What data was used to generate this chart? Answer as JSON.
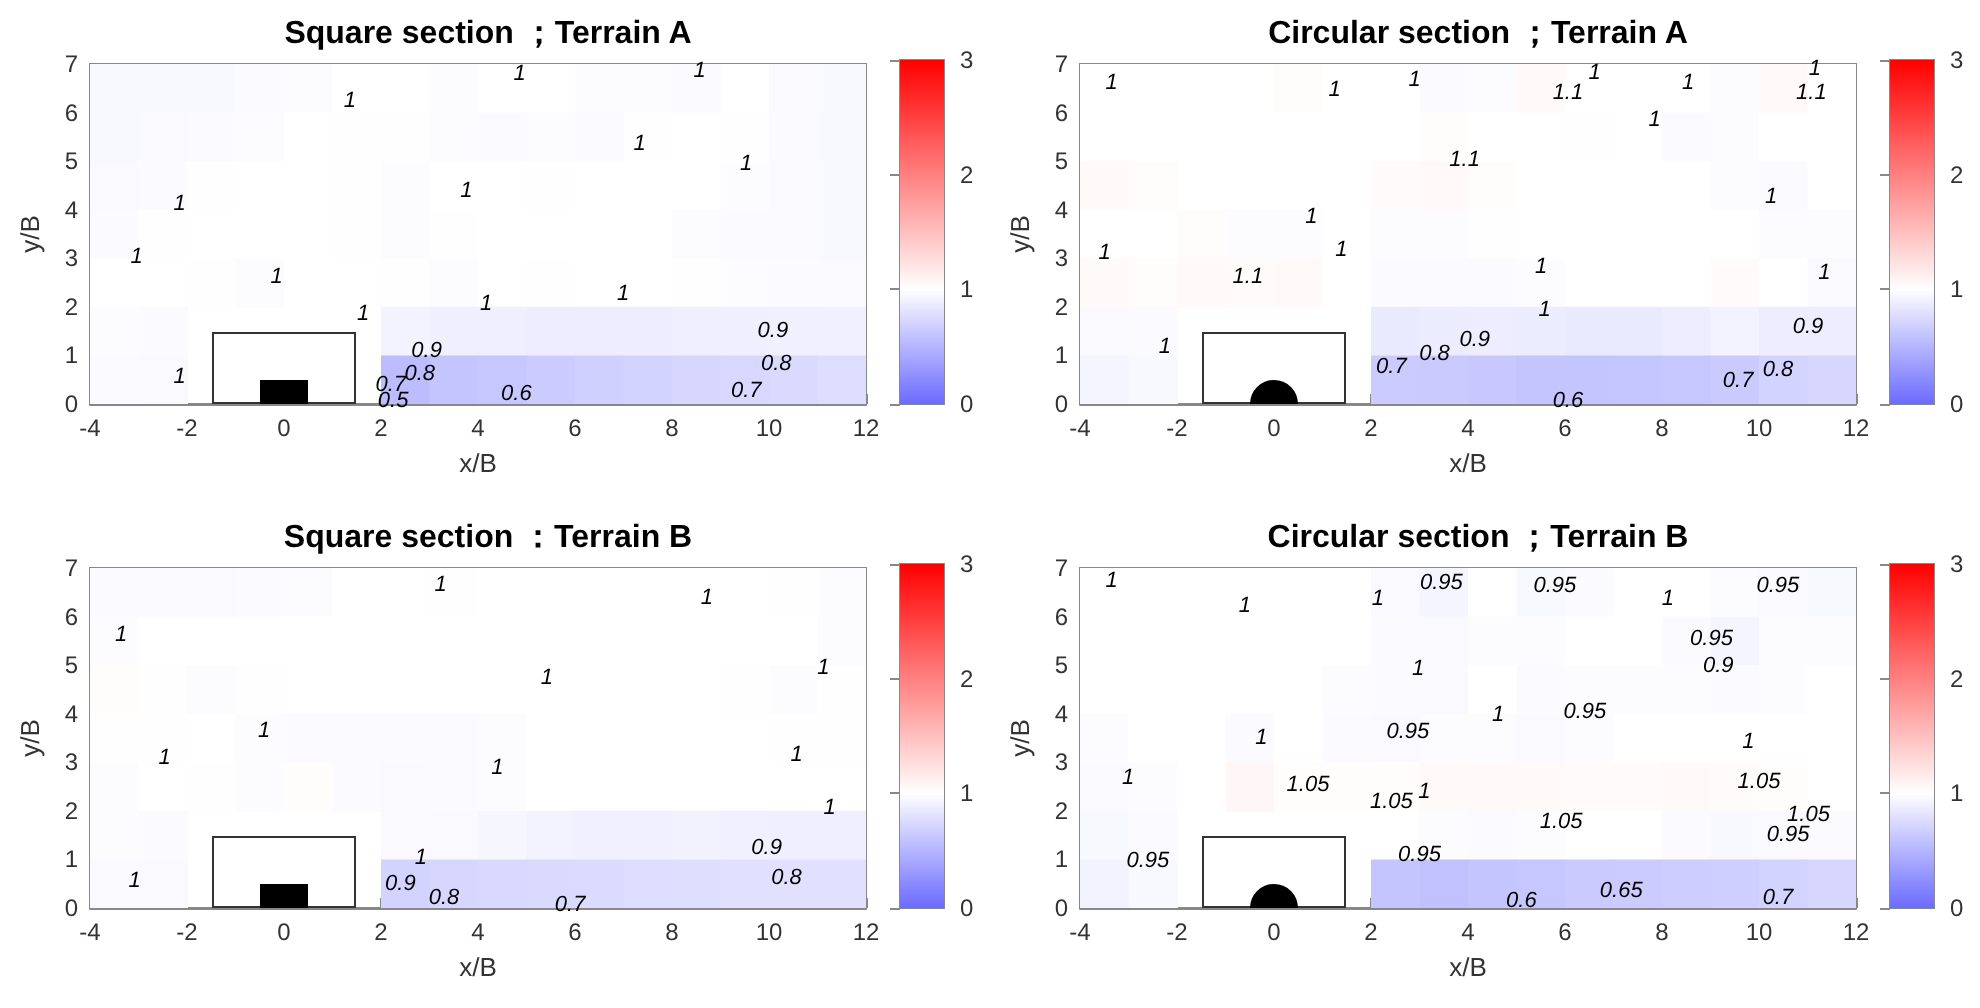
{
  "chart_data": [
    {
      "type": "heatmap",
      "title": "Square section ；Terrain A",
      "xlabel": "x/B",
      "ylabel": "y/B",
      "xlim": [
        -4,
        12
      ],
      "ylim": [
        0,
        7
      ],
      "xticks": [
        -4,
        -2,
        0,
        2,
        4,
        6,
        8,
        10,
        12
      ],
      "yticks": [
        0,
        1,
        2,
        3,
        4,
        5,
        6,
        7
      ],
      "clim": [
        0,
        3
      ],
      "cticks": [
        0,
        1,
        2,
        3
      ],
      "cells": [
        [
          0.95,
          0.95,
          0.95,
          0.97,
          0.98,
          1,
          1,
          0.98,
          1,
          1,
          0.98,
          0.98,
          0.97,
          1,
          0.96,
          0.95
        ],
        [
          0.95,
          0.96,
          0.97,
          0.98,
          1,
          1.01,
          0.99,
          0.98,
          0.97,
          0.98,
          0.97,
          0.99,
          1,
          1.01,
          0.97,
          0.95
        ],
        [
          0.96,
          0.97,
          0.99,
          1,
          1,
          0.99,
          0.98,
          1,
          1,
          0.99,
          1,
          1,
          1,
          0.98,
          0.96,
          0.95
        ],
        [
          0.97,
          0.99,
          1,
          1,
          1,
          0.99,
          0.98,
          0.99,
          1,
          1,
          1,
          1,
          0.98,
          0.97,
          0.96,
          0.95
        ],
        [
          1,
          1,
          0.99,
          0.98,
          1,
          1,
          0.99,
          0.98,
          1,
          0.99,
          1,
          1,
          0.99,
          0.98,
          0.97,
          0.96
        ],
        [
          0.98,
          0.97,
          null,
          null,
          null,
          null,
          0.92,
          0.89,
          0.89,
          0.88,
          0.88,
          0.88,
          0.89,
          0.89,
          0.9,
          0.9
        ],
        [
          0.97,
          0.96,
          null,
          null,
          null,
          null,
          0.55,
          0.6,
          0.62,
          0.65,
          0.68,
          0.7,
          0.72,
          0.73,
          0.75,
          0.77
        ]
      ],
      "annotations": [
        "1",
        "1",
        "1",
        "1",
        "1",
        "1",
        "1",
        "1",
        "1",
        "1",
        "1",
        "1",
        "1",
        "0.9",
        "0.8",
        "0.7",
        "0.6",
        "0.9",
        "0.8",
        "0.7",
        "0.5"
      ]
    },
    {
      "type": "heatmap",
      "title": "Circular section ；Terrain A",
      "xlabel": "x/B",
      "ylabel": "y/B",
      "xlim": [
        -4,
        12
      ],
      "ylim": [
        0,
        7
      ],
      "xticks": [
        -4,
        -2,
        0,
        2,
        4,
        6,
        8,
        10,
        12
      ],
      "yticks": [
        0,
        1,
        2,
        3,
        4,
        5,
        6,
        7
      ],
      "clim": [
        0,
        3
      ],
      "cticks": [
        0,
        1,
        2,
        3
      ],
      "cells": [
        [
          1,
          1,
          1,
          1,
          1.02,
          1,
          1,
          0.97,
          0.98,
          1.05,
          1,
          1,
          1,
          0.98,
          1.05,
          1
        ],
        [
          1,
          1,
          1,
          1,
          1,
          1,
          1,
          1.02,
          1,
          1,
          0.99,
          1,
          0.97,
          0.98,
          1,
          1
        ],
        [
          1.04,
          1.02,
          1,
          1,
          1,
          1,
          1.03,
          1.05,
          1.02,
          1,
          1,
          1,
          1,
          0.98,
          0.97,
          1
        ],
        [
          1,
          1,
          1.02,
          0.98,
          0.98,
          1,
          0.98,
          0.98,
          0.99,
          1,
          1,
          1,
          1,
          1,
          0.98,
          0.98
        ],
        [
          1.04,
          1.02,
          1.05,
          1.03,
          1.04,
          1,
          0.97,
          0.97,
          0.97,
          0.98,
          1,
          1,
          1,
          1.03,
          1,
          0.96
        ],
        [
          0.96,
          0.97,
          null,
          null,
          null,
          null,
          0.86,
          0.87,
          0.88,
          0.87,
          0.86,
          0.86,
          0.88,
          0.92,
          0.88,
          0.88
        ],
        [
          0.93,
          0.95,
          null,
          null,
          null,
          null,
          0.65,
          0.64,
          0.63,
          0.6,
          0.6,
          0.61,
          0.62,
          0.64,
          0.7,
          0.72
        ]
      ],
      "annotations": [
        "1",
        "1",
        "1",
        "1.1",
        "1",
        "1.1",
        "1",
        "1",
        "1",
        "1.1",
        "1",
        "1",
        "1",
        "1.1",
        "1",
        "1",
        "1",
        "1",
        "1",
        "0.9",
        "0.8",
        "0.7",
        "0.9",
        "0.8",
        "0.7",
        "0.6"
      ]
    },
    {
      "type": "heatmap",
      "title": "Square section ：Terrain B",
      "xlabel": "x/B",
      "ylabel": "y/B",
      "xlim": [
        -4,
        12
      ],
      "ylim": [
        0,
        7
      ],
      "xticks": [
        -4,
        -2,
        0,
        2,
        4,
        6,
        8,
        10,
        12
      ],
      "yticks": [
        0,
        1,
        2,
        3,
        4,
        5,
        6,
        7
      ],
      "clim": [
        0,
        3
      ],
      "cticks": [
        0,
        1,
        2,
        3
      ],
      "cells": [
        [
          0.97,
          0.96,
          0.96,
          0.97,
          0.98,
          1,
          1,
          0.99,
          1,
          1,
          1,
          1,
          1,
          1,
          1.01,
          0.98
        ],
        [
          0.98,
          1,
          1,
          1,
          1,
          1,
          1,
          1,
          1,
          1,
          1,
          1,
          1,
          1,
          1,
          0.98
        ],
        [
          1.02,
          0.99,
          0.98,
          0.99,
          1,
          1,
          1,
          1,
          1,
          1,
          1,
          1,
          1,
          0.99,
          0.98,
          0.99
        ],
        [
          0.99,
          0.99,
          1,
          0.98,
          0.97,
          0.97,
          0.97,
          0.97,
          0.98,
          1,
          1,
          1,
          1,
          1,
          0.99,
          0.99
        ],
        [
          0.98,
          1,
          0.99,
          0.98,
          1.02,
          0.97,
          0.96,
          0.97,
          0.98,
          1,
          1,
          1,
          1,
          1,
          1,
          1
        ],
        [
          0.98,
          0.97,
          null,
          null,
          null,
          null,
          0.96,
          0.96,
          0.94,
          0.92,
          0.9,
          0.9,
          0.91,
          0.9,
          0.89,
          0.89
        ],
        [
          0.96,
          0.96,
          null,
          null,
          null,
          null,
          0.7,
          0.72,
          0.74,
          0.75,
          0.76,
          0.77,
          0.78,
          0.8,
          0.8,
          0.8
        ]
      ],
      "annotations": [
        "1",
        "1",
        "1",
        "1",
        "1",
        "1",
        "1",
        "1",
        "1",
        "1",
        "1",
        "1",
        "0.9",
        "0.8",
        "0.7",
        "0.9",
        "0.8"
      ]
    },
    {
      "type": "heatmap",
      "title": "Circular section ；Terrain B",
      "xlabel": "x/B",
      "ylabel": "y/B",
      "xlim": [
        -4,
        12
      ],
      "ylim": [
        0,
        7
      ],
      "xticks": [
        -4,
        -2,
        0,
        2,
        4,
        6,
        8,
        10,
        12
      ],
      "yticks": [
        0,
        1,
        2,
        3,
        4,
        5,
        6,
        7
      ],
      "clim": [
        0,
        3
      ],
      "cticks": [
        0,
        1,
        2,
        3
      ],
      "cells": [
        [
          1,
          1,
          1,
          1,
          1,
          1,
          0.96,
          0.93,
          1,
          0.95,
          0.97,
          1,
          1,
          0.98,
          0.96,
          0.95
        ],
        [
          1,
          1,
          1,
          1,
          1,
          1,
          0.97,
          0.96,
          0.98,
          0.98,
          1,
          1,
          0.97,
          0.93,
          0.98,
          0.98
        ],
        [
          1,
          1,
          1,
          1,
          1,
          0.98,
          0.97,
          0.96,
          1,
          0.97,
          0.98,
          0.98,
          0.98,
          0.97,
          0.98,
          1
        ],
        [
          0.98,
          1,
          1,
          0.97,
          1,
          0.97,
          0.96,
          0.98,
          0.98,
          0.96,
          0.98,
          1,
          1,
          1,
          1,
          1
        ],
        [
          0.97,
          0.98,
          1,
          1.06,
          1.02,
          1.02,
          1.02,
          1.04,
          1.05,
          1.04,
          1.03,
          1.03,
          1.04,
          1.03,
          1.02,
          1
        ],
        [
          0.95,
          0.97,
          null,
          null,
          null,
          null,
          1,
          0.98,
          0.97,
          0.98,
          1,
          1,
          0.97,
          0.95,
          0.96,
          0.97
        ],
        [
          0.92,
          0.95,
          null,
          null,
          null,
          null,
          0.6,
          0.58,
          0.6,
          0.62,
          0.64,
          0.65,
          0.66,
          0.67,
          0.7,
          0.72
        ]
      ],
      "annotations": [
        "1",
        "1",
        "1",
        "0.95",
        "0.95",
        "1",
        "0.95",
        "0.95",
        "0.9",
        "1",
        "0.95",
        "0.95",
        "1",
        "1",
        "1",
        "1",
        "1.05",
        "1.05",
        "1",
        "1.05",
        "1.05",
        "1.05",
        "0.95",
        "0.6",
        "0.65",
        "0.95",
        "0.95",
        "0.7"
      ]
    }
  ]
}
